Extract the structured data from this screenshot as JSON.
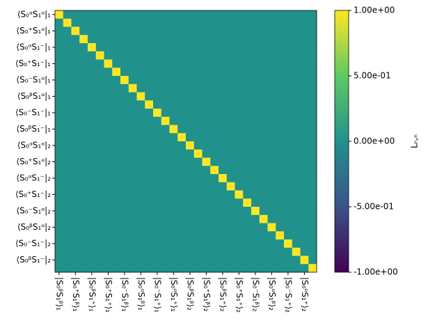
{
  "chart_data": {
    "type": "heatmap",
    "y_categories": [
      "⟨S₀ᵅS₁ᵅ|₁",
      null,
      "⟨S₀⁺S₁ᵅ|₁",
      null,
      "⟨S₀ᵅS₁⁻|₁",
      null,
      "⟨S₀⁺S₁⁻|₁",
      null,
      "⟨S₀⁻S₁ᵅ|₁",
      null,
      "⟨S₀ᵝS₁ᵅ|₁",
      null,
      "⟨S₀⁻S₁⁻|₁",
      null,
      "⟨S₀ᵝS₁⁻|₁",
      null,
      "⟨S₀ᵅS₁ᵅ|₂",
      null,
      "⟨S₀⁺S₁ᵅ|₂",
      null,
      "⟨S₀ᵅS₁⁻|₂",
      null,
      "⟨S₀⁺S₁⁻|₂",
      null,
      "⟨S₀⁻S₁ᵅ|₂",
      null,
      "⟨S₀ᵝS₁ᵅ|₂",
      null,
      "⟨S₀⁻S₁⁻|₂",
      null,
      "⟨S₀ᵝS₁⁻|₂",
      null
    ],
    "x_categories": [
      "|S₀ᵝS₁ᵝ⟩₁",
      null,
      "|S₀⁺S₁ᵝ⟩₁",
      null,
      "|S₀ᵝS₁⁺⟩₁",
      null,
      "|S₀⁺S₁⁺⟩₁",
      null,
      "|S₀⁻S₁ᵝ⟩₁",
      null,
      "|S₀ᵅS₁ᵝ⟩₁",
      null,
      "|S₀⁻S₁⁺⟩₁",
      null,
      "|S₀ᵅS₁⁺⟩₁",
      null,
      "|S₀ᵝS₁ᵝ⟩₂",
      null,
      "|S₀⁺S₁ᵝ⟩₂",
      null,
      "|S₀ᵝS₁⁺⟩₂",
      null,
      "|S₀⁺S₁⁺⟩₂",
      null,
      "|S₀⁻S₁ᵝ⟩₂",
      null,
      "|S₀ᵅS₁ᵝ⟩₂",
      null,
      "|S₀⁻S₁⁺⟩₂",
      null,
      "|S₀ᵅS₁⁺⟩₂",
      null
    ],
    "values": [
      [
        1,
        0,
        0,
        0,
        0,
        0,
        0,
        0,
        0,
        0,
        0,
        0,
        0,
        0,
        0,
        0,
        0,
        0,
        0,
        0,
        0,
        0,
        0,
        0,
        0,
        0,
        0,
        0,
        0,
        0,
        0,
        0
      ],
      [
        0,
        1,
        0,
        0,
        0,
        0,
        0,
        0,
        0,
        0,
        0,
        0,
        0,
        0,
        0,
        0,
        0,
        0,
        0,
        0,
        0,
        0,
        0,
        0,
        0,
        0,
        0,
        0,
        0,
        0,
        0,
        0
      ],
      [
        0,
        0,
        1,
        0,
        0,
        0,
        0,
        0,
        0,
        0,
        0,
        0,
        0,
        0,
        0,
        0,
        0,
        0,
        0,
        0,
        0,
        0,
        0,
        0,
        0,
        0,
        0,
        0,
        0,
        0,
        0,
        0
      ],
      [
        0,
        0,
        0,
        1,
        0,
        0,
        0,
        0,
        0,
        0,
        0,
        0,
        0,
        0,
        0,
        0,
        0,
        0,
        0,
        0,
        0,
        0,
        0,
        0,
        0,
        0,
        0,
        0,
        0,
        0,
        0,
        0
      ],
      [
        0,
        0,
        0,
        0,
        1,
        0,
        0,
        0,
        0,
        0,
        0,
        0,
        0,
        0,
        0,
        0,
        0,
        0,
        0,
        0,
        0,
        0,
        0,
        0,
        0,
        0,
        0,
        0,
        0,
        0,
        0,
        0
      ],
      [
        0,
        0,
        0,
        0,
        0,
        1,
        0,
        0,
        0,
        0,
        0,
        0,
        0,
        0,
        0,
        0,
        0,
        0,
        0,
        0,
        0,
        0,
        0,
        0,
        0,
        0,
        0,
        0,
        0,
        0,
        0,
        0
      ],
      [
        0,
        0,
        0,
        0,
        0,
        0,
        1,
        0,
        0,
        0,
        0,
        0,
        0,
        0,
        0,
        0,
        0,
        0,
        0,
        0,
        0,
        0,
        0,
        0,
        0,
        0,
        0,
        0,
        0,
        0,
        0,
        0
      ],
      [
        0,
        0,
        0,
        0,
        0,
        0,
        0,
        1,
        0,
        0,
        0,
        0,
        0,
        0,
        0,
        0,
        0,
        0,
        0,
        0,
        0,
        0,
        0,
        0,
        0,
        0,
        0,
        0,
        0,
        0,
        0,
        0
      ],
      [
        0,
        0,
        0,
        0,
        0,
        0,
        0,
        0,
        1,
        0,
        0,
        0,
        0,
        0,
        0,
        0,
        0,
        0,
        0,
        0,
        0,
        0,
        0,
        0,
        0,
        0,
        0,
        0,
        0,
        0,
        0,
        0
      ],
      [
        0,
        0,
        0,
        0,
        0,
        0,
        0,
        0,
        0,
        1,
        0,
        0,
        0,
        0,
        0,
        0,
        0,
        0,
        0,
        0,
        0,
        0,
        0,
        0,
        0,
        0,
        0,
        0,
        0,
        0,
        0,
        0
      ],
      [
        0,
        0,
        0,
        0,
        0,
        0,
        0,
        0,
        0,
        0,
        1,
        0,
        0,
        0,
        0,
        0,
        0,
        0,
        0,
        0,
        0,
        0,
        0,
        0,
        0,
        0,
        0,
        0,
        0,
        0,
        0,
        0
      ],
      [
        0,
        0,
        0,
        0,
        0,
        0,
        0,
        0,
        0,
        0,
        0,
        1,
        0,
        0,
        0,
        0,
        0,
        0,
        0,
        0,
        0,
        0,
        0,
        0,
        0,
        0,
        0,
        0,
        0,
        0,
        0,
        0
      ],
      [
        0,
        0,
        0,
        0,
        0,
        0,
        0,
        0,
        0,
        0,
        0,
        0,
        1,
        0,
        0,
        0,
        0,
        0,
        0,
        0,
        0,
        0,
        0,
        0,
        0,
        0,
        0,
        0,
        0,
        0,
        0,
        0
      ],
      [
        0,
        0,
        0,
        0,
        0,
        0,
        0,
        0,
        0,
        0,
        0,
        0,
        0,
        1,
        0,
        0,
        0,
        0,
        0,
        0,
        0,
        0,
        0,
        0,
        0,
        0,
        0,
        0,
        0,
        0,
        0,
        0
      ],
      [
        0,
        0,
        0,
        0,
        0,
        0,
        0,
        0,
        0,
        0,
        0,
        0,
        0,
        0,
        1,
        0,
        0,
        0,
        0,
        0,
        0,
        0,
        0,
        0,
        0,
        0,
        0,
        0,
        0,
        0,
        0,
        0
      ],
      [
        0,
        0,
        0,
        0,
        0,
        0,
        0,
        0,
        0,
        0,
        0,
        0,
        0,
        0,
        0,
        1,
        0,
        0,
        0,
        0,
        0,
        0,
        0,
        0,
        0,
        0,
        0,
        0,
        0,
        0,
        0,
        0
      ],
      [
        0,
        0,
        0,
        0,
        0,
        0,
        0,
        0,
        0,
        0,
        0,
        0,
        0,
        0,
        0,
        0,
        1,
        0,
        0,
        0,
        0,
        0,
        0,
        0,
        0,
        0,
        0,
        0,
        0,
        0,
        0,
        0
      ],
      [
        0,
        0,
        0,
        0,
        0,
        0,
        0,
        0,
        0,
        0,
        0,
        0,
        0,
        0,
        0,
        0,
        0,
        1,
        0,
        0,
        0,
        0,
        0,
        0,
        0,
        0,
        0,
        0,
        0,
        0,
        0,
        0
      ],
      [
        0,
        0,
        0,
        0,
        0,
        0,
        0,
        0,
        0,
        0,
        0,
        0,
        0,
        0,
        0,
        0,
        0,
        0,
        1,
        0,
        0,
        0,
        0,
        0,
        0,
        0,
        0,
        0,
        0,
        0,
        0,
        0
      ],
      [
        0,
        0,
        0,
        0,
        0,
        0,
        0,
        0,
        0,
        0,
        0,
        0,
        0,
        0,
        0,
        0,
        0,
        0,
        0,
        1,
        0,
        0,
        0,
        0,
        0,
        0,
        0,
        0,
        0,
        0,
        0,
        0
      ],
      [
        0,
        0,
        0,
        0,
        0,
        0,
        0,
        0,
        0,
        0,
        0,
        0,
        0,
        0,
        0,
        0,
        0,
        0,
        0,
        0,
        1,
        0,
        0,
        0,
        0,
        0,
        0,
        0,
        0,
        0,
        0,
        0
      ],
      [
        0,
        0,
        0,
        0,
        0,
        0,
        0,
        0,
        0,
        0,
        0,
        0,
        0,
        0,
        0,
        0,
        0,
        0,
        0,
        0,
        0,
        1,
        0,
        0,
        0,
        0,
        0,
        0,
        0,
        0,
        0,
        0
      ],
      [
        0,
        0,
        0,
        0,
        0,
        0,
        0,
        0,
        0,
        0,
        0,
        0,
        0,
        0,
        0,
        0,
        0,
        0,
        0,
        0,
        0,
        0,
        1,
        0,
        0,
        0,
        0,
        0,
        0,
        0,
        0,
        0
      ],
      [
        0,
        0,
        0,
        0,
        0,
        0,
        0,
        0,
        0,
        0,
        0,
        0,
        0,
        0,
        0,
        0,
        0,
        0,
        0,
        0,
        0,
        0,
        0,
        1,
        0,
        0,
        0,
        0,
        0,
        0,
        0,
        0
      ],
      [
        0,
        0,
        0,
        0,
        0,
        0,
        0,
        0,
        0,
        0,
        0,
        0,
        0,
        0,
        0,
        0,
        0,
        0,
        0,
        0,
        0,
        0,
        0,
        0,
        1,
        0,
        0,
        0,
        0,
        0,
        0,
        0
      ],
      [
        0,
        0,
        0,
        0,
        0,
        0,
        0,
        0,
        0,
        0,
        0,
        0,
        0,
        0,
        0,
        0,
        0,
        0,
        0,
        0,
        0,
        0,
        0,
        0,
        0,
        1,
        0,
        0,
        0,
        0,
        0,
        0
      ],
      [
        0,
        0,
        0,
        0,
        0,
        0,
        0,
        0,
        0,
        0,
        0,
        0,
        0,
        0,
        0,
        0,
        0,
        0,
        0,
        0,
        0,
        0,
        0,
        0,
        0,
        0,
        1,
        0,
        0,
        0,
        0,
        0
      ],
      [
        0,
        0,
        0,
        0,
        0,
        0,
        0,
        0,
        0,
        0,
        0,
        0,
        0,
        0,
        0,
        0,
        0,
        0,
        0,
        0,
        0,
        0,
        0,
        0,
        0,
        0,
        0,
        1,
        0,
        0,
        0,
        0
      ],
      [
        0,
        0,
        0,
        0,
        0,
        0,
        0,
        0,
        0,
        0,
        0,
        0,
        0,
        0,
        0,
        0,
        0,
        0,
        0,
        0,
        0,
        0,
        0,
        0,
        0,
        0,
        0,
        0,
        1,
        0,
        0,
        0
      ],
      [
        0,
        0,
        0,
        0,
        0,
        0,
        0,
        0,
        0,
        0,
        0,
        0,
        0,
        0,
        0,
        0,
        0,
        0,
        0,
        0,
        0,
        0,
        0,
        0,
        0,
        0,
        0,
        0,
        0,
        1,
        0,
        0
      ],
      [
        0,
        0,
        0,
        0,
        0,
        0,
        0,
        0,
        0,
        0,
        0,
        0,
        0,
        0,
        0,
        0,
        0,
        0,
        0,
        0,
        0,
        0,
        0,
        0,
        0,
        0,
        0,
        0,
        0,
        0,
        1,
        0
      ],
      [
        0,
        0,
        0,
        0,
        0,
        0,
        0,
        0,
        0,
        0,
        0,
        0,
        0,
        0,
        0,
        0,
        0,
        0,
        0,
        0,
        0,
        0,
        0,
        0,
        0,
        0,
        0,
        0,
        0,
        0,
        0,
        1
      ]
    ],
    "colorscale": [
      "#440154",
      "#3b528b",
      "#21918c",
      "#5ec962",
      "#fde725"
    ],
    "colorbar_label": "Lₙ,ₙ",
    "clim": [
      -1,
      1
    ],
    "cticks": [
      {
        "value": -1,
        "label": "-1.00e+00"
      },
      {
        "value": -0.5,
        "label": "-5.00e-01"
      },
      {
        "value": 0,
        "label": "0.00e+00"
      },
      {
        "value": 0.5,
        "label": "5.00e-01"
      },
      {
        "value": 1,
        "label": "1.00e+00"
      }
    ]
  }
}
